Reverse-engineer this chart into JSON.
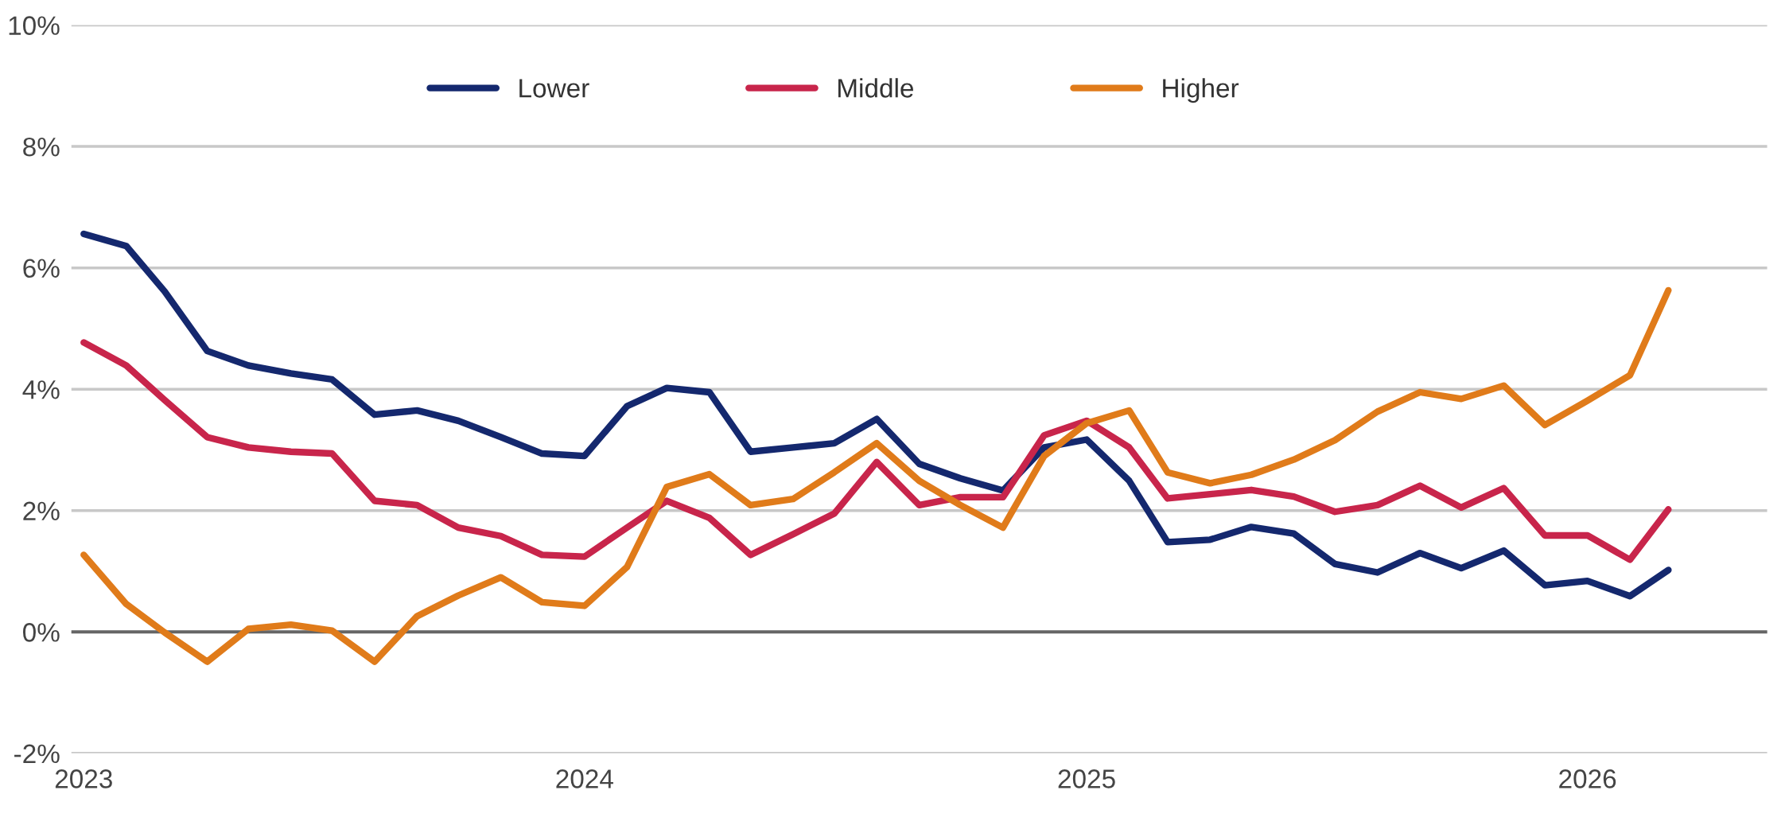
{
  "chart_data": {
    "type": "line",
    "x": [
      "2023-01",
      "2023-02",
      "2023-03",
      "2023-04",
      "2023-05",
      "2023-06",
      "2023-07",
      "2023-08",
      "2023-09",
      "2023-10",
      "2023-11",
      "2023-12",
      "2024-01",
      "2024-02",
      "2024-03",
      "2024-04",
      "2024-05",
      "2024-06",
      "2024-07",
      "2024-08",
      "2024-09",
      "2024-10",
      "2024-11",
      "2024-12",
      "2025-01",
      "2025-02",
      "2025-03",
      "2025-04",
      "2025-05",
      "2025-06",
      "2025-07",
      "2025-08",
      "2025-09",
      "2025-10",
      "2025-11",
      "2025-12",
      "2026-01",
      "2026-02",
      "2026-03"
    ],
    "series": [
      {
        "name": "Lower",
        "color": "#14286e",
        "values": [
          6.56,
          6.36,
          5.61,
          4.63,
          4.39,
          4.26,
          4.16,
          3.58,
          3.65,
          3.48,
          3.21,
          2.94,
          2.9,
          3.72,
          4.02,
          3.95,
          2.97,
          3.04,
          3.11,
          3.51,
          2.77,
          2.53,
          2.33,
          3.04,
          3.17,
          2.49,
          1.48,
          1.52,
          1.73,
          1.62,
          1.12,
          0.98,
          1.3,
          1.05,
          1.34,
          0.77,
          0.84,
          0.59,
          1.02
        ]
      },
      {
        "name": "Middle",
        "color": "#c8254b",
        "values": [
          4.77,
          4.39,
          3.82,
          3.21,
          3.04,
          2.97,
          2.94,
          2.16,
          2.09,
          1.72,
          1.58,
          1.27,
          1.24,
          1.72,
          2.16,
          1.88,
          1.27,
          1.61,
          1.95,
          2.8,
          2.09,
          2.22,
          2.22,
          3.24,
          3.48,
          3.04,
          2.2,
          2.27,
          2.34,
          2.23,
          1.98,
          2.09,
          2.41,
          2.05,
          2.37,
          1.59,
          1.59,
          1.19,
          2.02
        ]
      },
      {
        "name": "Higher",
        "color": "#e07b1a",
        "values": [
          1.27,
          0.46,
          -0.01,
          -0.49,
          0.05,
          0.12,
          0.02,
          -0.49,
          0.26,
          0.6,
          0.9,
          0.49,
          0.43,
          1.07,
          2.39,
          2.6,
          2.09,
          2.19,
          2.63,
          3.11,
          2.49,
          2.09,
          1.72,
          2.9,
          3.44,
          3.65,
          2.63,
          2.45,
          2.59,
          2.84,
          3.16,
          3.63,
          3.95,
          3.84,
          4.06,
          3.41,
          3.81,
          4.23,
          5.63
        ]
      }
    ],
    "xlim": [
      "2022-12-23",
      "2026-05-12"
    ],
    "xticks": [
      {
        "value": "2023-01-01",
        "label": "2023"
      },
      {
        "value": "2024-01-01",
        "label": "2024"
      },
      {
        "value": "2025-01-01",
        "label": "2025"
      },
      {
        "value": "2026-01-01",
        "label": "2026"
      }
    ],
    "ylim": [
      -2,
      10
    ],
    "yticks": [
      {
        "value": -2,
        "label": "-2%"
      },
      {
        "value": 0,
        "label": "0%"
      },
      {
        "value": 2,
        "label": "2%"
      },
      {
        "value": 4,
        "label": "4%"
      },
      {
        "value": 6,
        "label": "6%"
      },
      {
        "value": 8,
        "label": "8%"
      },
      {
        "value": 10,
        "label": "10%"
      }
    ],
    "ref_lines": [
      {
        "axis": "y",
        "value": 0,
        "color": "#666666"
      }
    ],
    "grid": "y",
    "legend": "top",
    "line_style": "solid",
    "marker": "none"
  }
}
